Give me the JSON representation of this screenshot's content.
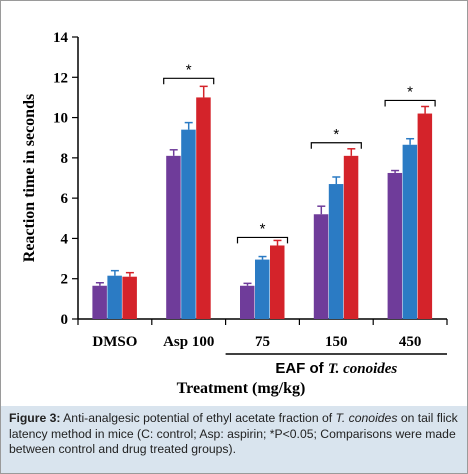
{
  "chart_data": {
    "type": "bar",
    "categories": [
      "DMSO",
      "Asp 100",
      "75",
      "150",
      "450"
    ],
    "series": [
      {
        "values": [
          1.65,
          8.1,
          1.65,
          5.2,
          7.25
        ],
        "errors": [
          0.15,
          0.3,
          0.12,
          0.4,
          0.12
        ],
        "color": "#6f3c9a"
      },
      {
        "values": [
          2.15,
          9.4,
          2.95,
          6.7,
          8.65
        ],
        "errors": [
          0.25,
          0.35,
          0.15,
          0.35,
          0.3
        ],
        "color": "#2b7bc4"
      },
      {
        "values": [
          2.1,
          11.0,
          3.65,
          8.1,
          10.2
        ],
        "errors": [
          0.2,
          0.55,
          0.25,
          0.35,
          0.35
        ],
        "color": "#d4232a"
      }
    ],
    "ylim": [
      0,
      14
    ],
    "yticks": [
      0,
      2,
      4,
      6,
      8,
      10,
      12,
      14
    ],
    "ylabel": "Reaction time in seconds",
    "xlabel": "Treatment (mg/kg)",
    "group_label_prefix": "EAF of ",
    "group_label_species": "T. conoides",
    "significance": [
      {
        "category": "Asp 100",
        "y": 11.95,
        "label": "*"
      },
      {
        "category": "75",
        "y": 4.05,
        "label": "*"
      },
      {
        "category": "150",
        "y": 8.75,
        "label": "*"
      },
      {
        "category": "450",
        "y": 10.85,
        "label": "*"
      }
    ],
    "grid": false,
    "legend": "none"
  },
  "caption": {
    "figure_label": "Figure 3:",
    "text_before": " Anti-analgesic potential of ethyl acetate fraction of ",
    "species": "T. conoides",
    "text_after": " on tail flick latency method in mice (C: control; Asp: aspirin; *P<0.05; Comparisons were made between control and drug treated groups)."
  }
}
